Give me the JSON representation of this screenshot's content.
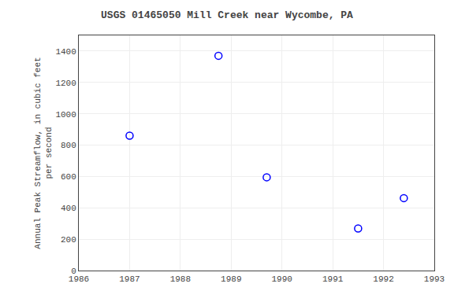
{
  "chart_data": {
    "type": "scatter",
    "title": "USGS 01465050 Mill Creek near Wycombe, PA",
    "ylabel": "Annual Peak Streamflow, in cubic feet\nper second",
    "x": [
      1987.0,
      1988.75,
      1989.7,
      1991.5,
      1992.4
    ],
    "values": [
      860,
      1370,
      595,
      268,
      462
    ],
    "xlim": [
      1986,
      1993
    ],
    "ylim": [
      0,
      1500
    ],
    "xticks": [
      1986,
      1987,
      1988,
      1989,
      1990,
      1991,
      1992,
      1993
    ],
    "yticks": [
      0,
      200,
      400,
      600,
      800,
      1000,
      1200,
      1400
    ],
    "color": "blue",
    "marker": "circle-open",
    "grid": true
  }
}
